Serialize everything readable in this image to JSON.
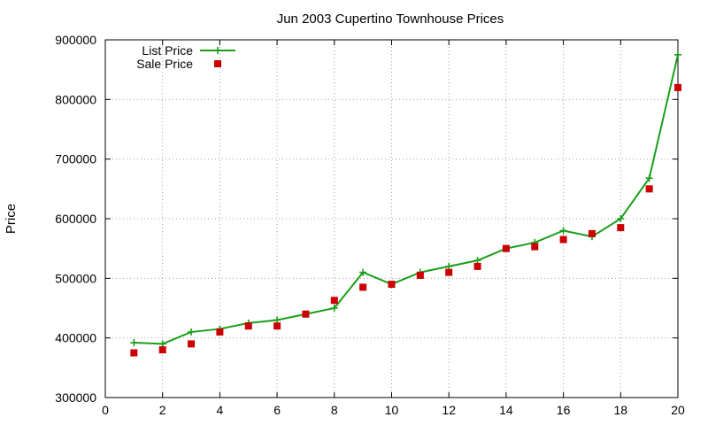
{
  "chart_data": {
    "type": "line",
    "title": "Jun 2003 Cupertino Townhouse Prices",
    "xlabel": "",
    "ylabel": "Price",
    "xlim": [
      0,
      20
    ],
    "ylim": [
      300000,
      900000
    ],
    "xticks": [
      0,
      2,
      4,
      6,
      8,
      10,
      12,
      14,
      16,
      18,
      20
    ],
    "yticks": [
      300000,
      400000,
      500000,
      600000,
      700000,
      800000,
      900000
    ],
    "grid": true,
    "legend": "top-left",
    "series": [
      {
        "name": "List Price",
        "style": "line-with-plus-markers",
        "color": "#1a9e1a",
        "x": [
          1,
          2,
          3,
          4,
          5,
          6,
          7,
          8,
          9,
          10,
          11,
          12,
          13,
          14,
          15,
          16,
          17,
          18,
          19,
          20
        ],
        "y": [
          392000,
          390000,
          410000,
          415000,
          425000,
          430000,
          440000,
          450000,
          510000,
          490000,
          510000,
          520000,
          530000,
          550000,
          560000,
          580000,
          570000,
          600000,
          668000,
          875000
        ]
      },
      {
        "name": "Sale Price",
        "style": "square-markers",
        "color": "#cc0000",
        "x": [
          1,
          2,
          3,
          4,
          5,
          6,
          7,
          8,
          9,
          10,
          11,
          12,
          13,
          14,
          15,
          16,
          17,
          18,
          19,
          20
        ],
        "y": [
          375000,
          380000,
          390000,
          410000,
          420000,
          420000,
          440000,
          463000,
          485000,
          490000,
          505000,
          510000,
          520000,
          550000,
          553000,
          565000,
          575000,
          585000,
          650000,
          820000
        ]
      }
    ]
  }
}
